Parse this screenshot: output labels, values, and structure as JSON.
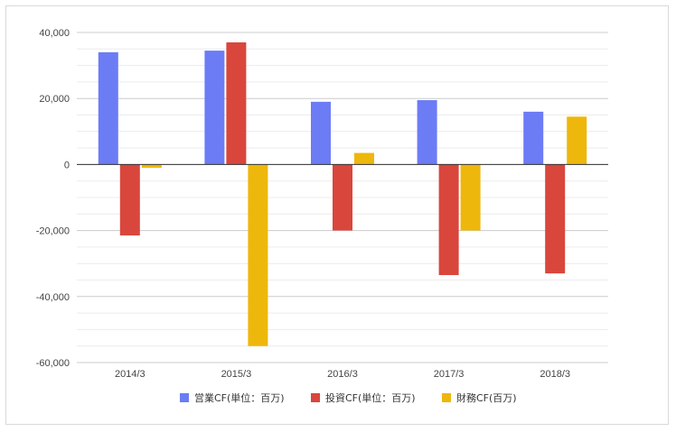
{
  "chart_data": {
    "type": "bar",
    "title": "",
    "xlabel": "",
    "ylabel": "",
    "categories": [
      "2014/3",
      "2015/3",
      "2016/3",
      "2017/3",
      "2018/3"
    ],
    "series": [
      {
        "name": "営業CF(単位：百万)",
        "color": "#6c7cf5",
        "values": [
          34000,
          34500,
          19000,
          19500,
          16000
        ]
      },
      {
        "name": "投資CF(単位：百万)",
        "color": "#d9463c",
        "values": [
          -21500,
          37000,
          -20000,
          -33500,
          -33000
        ]
      },
      {
        "name": "財務CF(百万)",
        "color": "#eeb70b",
        "values": [
          -1000,
          -55000,
          3500,
          -20000,
          14500
        ]
      }
    ],
    "ylim": [
      -60000,
      40000
    ],
    "yticks": [
      40000,
      20000,
      0,
      -20000,
      -40000,
      -60000
    ],
    "ytick_labels": [
      "40,000",
      "20,000",
      "0",
      "-20,000",
      "-40,000",
      "-60,000"
    ],
    "grid": true,
    "legend_position": "bottom"
  }
}
